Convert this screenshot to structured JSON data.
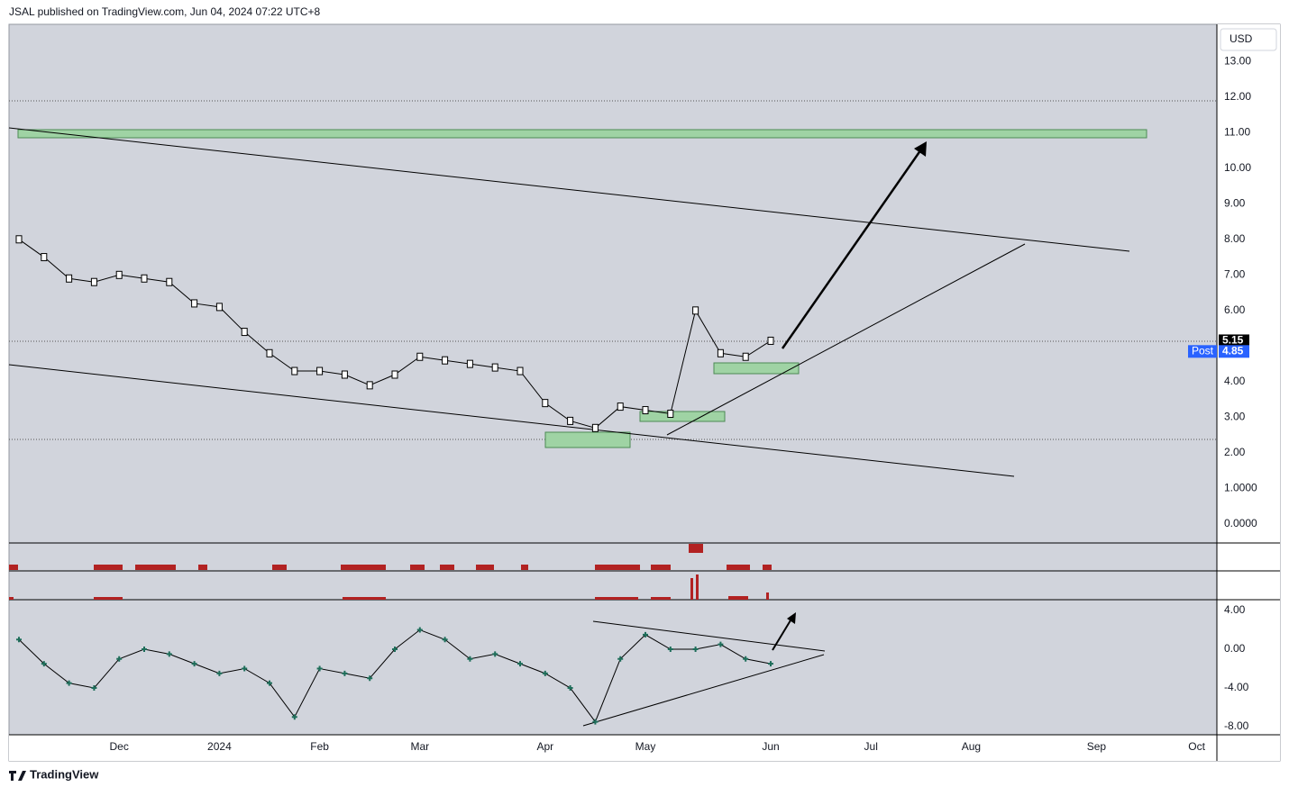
{
  "header": {
    "text": "JSAL published on TradingView.com, Jun 04, 2024 07:22 UTC+8"
  },
  "currency": "USD",
  "footer": "TradingView",
  "chart_data": [
    {
      "type": "line",
      "categories": [
        null,
        null,
        null,
        null,
        "Dec",
        null,
        null,
        null,
        "2024",
        null,
        null,
        null,
        "Feb",
        null,
        null,
        null,
        "Mar",
        null,
        null,
        null,
        null,
        "Apr",
        null,
        null,
        null,
        "May",
        null,
        null,
        null,
        null,
        "Jun",
        null,
        null,
        null,
        "Jul",
        null,
        null,
        null,
        "Aug",
        null,
        null,
        null,
        null,
        "Sep",
        null,
        null,
        null,
        "Oct",
        null
      ],
      "values": [
        8.0,
        7.5,
        6.9,
        6.8,
        7.0,
        6.9,
        6.8,
        6.2,
        6.1,
        5.4,
        4.8,
        4.3,
        4.3,
        4.2,
        3.9,
        4.2,
        4.7,
        4.6,
        4.5,
        4.4,
        4.3,
        3.4,
        2.9,
        2.7,
        3.3,
        3.2,
        3.1,
        6.0,
        4.8,
        4.7,
        5.15,
        null,
        null,
        null,
        null,
        null,
        null,
        null,
        null,
        null,
        null,
        null,
        null,
        null,
        null,
        null,
        null,
        null,
        null
      ],
      "color": "#000000",
      "ylim": [
        -0.53,
        14.04
      ],
      "yticks": [
        {
          "value": 13,
          "label": "13.00"
        },
        {
          "value": 12,
          "label": "12.00"
        },
        {
          "value": 11,
          "label": "11.00"
        },
        {
          "value": 10,
          "label": "10.00"
        },
        {
          "value": 9,
          "label": "9.00"
        },
        {
          "value": 8,
          "label": "8.00"
        },
        {
          "value": 7,
          "label": "7.00"
        },
        {
          "value": 6,
          "label": "6.00"
        },
        {
          "value": 4,
          "label": "4.00"
        },
        {
          "value": 3,
          "label": "3.00"
        },
        {
          "value": 2,
          "label": "2.00"
        },
        {
          "value": 1,
          "label": "1.0000"
        },
        {
          "value": 0,
          "label": "0.0000"
        }
      ],
      "price_tags": [
        {
          "value": 5.15,
          "label": "5.15",
          "color": "#000000"
        },
        {
          "name": "Post",
          "value": 4.85,
          "label": "4.85",
          "color": "#2962ff"
        }
      ]
    },
    {
      "type": "line",
      "values": [
        1.0,
        -1.5,
        -3.5,
        -4.0,
        -1.0,
        0.0,
        -0.5,
        -1.5,
        -2.5,
        -2.0,
        -3.5,
        -7.0,
        -2.0,
        -2.5,
        -3.0,
        0.0,
        2.0,
        1.0,
        -1.0,
        -0.5,
        -1.5,
        -2.5,
        -4.0,
        -7.5,
        -1.0,
        1.5,
        0.0,
        0.0,
        0.5,
        -1.0,
        -1.5,
        null,
        null,
        null,
        null,
        null,
        null,
        null,
        null,
        null,
        null,
        null,
        null,
        null,
        null,
        null,
        null,
        null,
        null
      ],
      "color": "#1e6e5a",
      "ylim": [
        -8.84,
        5.12
      ],
      "yticks": [
        {
          "value": 4,
          "label": "4.00"
        },
        {
          "value": 0,
          "label": "0.00"
        },
        {
          "value": -4,
          "label": "-4.00"
        },
        {
          "value": -8,
          "label": "-8.00"
        }
      ]
    }
  ]
}
